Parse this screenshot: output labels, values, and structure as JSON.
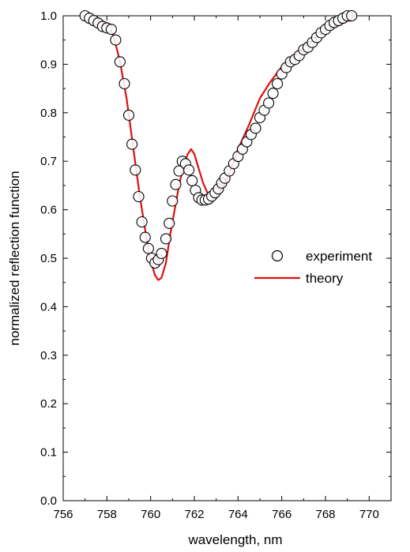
{
  "chart_data": {
    "type": "line",
    "title": "",
    "xlabel": "wavelength, nm",
    "ylabel": "normalized reflection function",
    "xlim": [
      756,
      771
    ],
    "ylim": [
      0.0,
      1.0
    ],
    "xticks": [
      "756",
      "758",
      "760",
      "762",
      "764",
      "766",
      "768",
      "770"
    ],
    "yticks": [
      "0.0",
      "0.1",
      "0.2",
      "0.3",
      "0.4",
      "0.5",
      "0.6",
      "0.7",
      "0.8",
      "0.9",
      "1.0"
    ],
    "grid": false,
    "legend_position": "right-middle",
    "series": [
      {
        "name": "experiment",
        "style": "scatter-open-circle",
        "color": "#000000",
        "x": [
          757.0,
          757.2,
          757.4,
          757.6,
          757.8,
          758.0,
          758.2,
          758.4,
          758.6,
          758.8,
          759.0,
          759.15,
          759.3,
          759.45,
          759.6,
          759.75,
          759.9,
          760.05,
          760.2,
          760.35,
          760.5,
          760.7,
          760.85,
          761.0,
          761.15,
          761.3,
          761.45,
          761.6,
          761.75,
          761.9,
          762.05,
          762.2,
          762.35,
          762.5,
          762.65,
          762.8,
          762.95,
          763.1,
          763.25,
          763.4,
          763.6,
          763.8,
          764.0,
          764.2,
          764.4,
          764.6,
          764.8,
          765.0,
          765.2,
          765.4,
          765.6,
          765.8,
          766.0,
          766.2,
          766.4,
          766.6,
          766.8,
          767.0,
          767.2,
          767.4,
          767.6,
          767.8,
          768.0,
          768.2,
          768.4,
          768.6,
          768.8,
          769.0,
          769.2
        ],
        "y": [
          1.0,
          0.995,
          0.99,
          0.985,
          0.978,
          0.975,
          0.972,
          0.95,
          0.905,
          0.86,
          0.795,
          0.735,
          0.682,
          0.627,
          0.575,
          0.543,
          0.52,
          0.5,
          0.49,
          0.497,
          0.51,
          0.54,
          0.572,
          0.618,
          0.652,
          0.68,
          0.7,
          0.695,
          0.682,
          0.66,
          0.64,
          0.625,
          0.62,
          0.62,
          0.622,
          0.628,
          0.635,
          0.643,
          0.655,
          0.665,
          0.68,
          0.695,
          0.71,
          0.725,
          0.74,
          0.755,
          0.768,
          0.79,
          0.805,
          0.82,
          0.84,
          0.86,
          0.88,
          0.893,
          0.905,
          0.91,
          0.918,
          0.93,
          0.935,
          0.945,
          0.955,
          0.965,
          0.972,
          0.98,
          0.986,
          0.99,
          0.995,
          1.0,
          1.0
        ]
      },
      {
        "name": "theory",
        "style": "line",
        "color": "#dd1111",
        "x": [
          757.0,
          757.5,
          758.0,
          758.3,
          758.6,
          758.9,
          759.2,
          759.5,
          759.8,
          760.0,
          760.2,
          760.35,
          760.5,
          760.7,
          760.9,
          761.1,
          761.3,
          761.5,
          761.7,
          761.85,
          762.0,
          762.2,
          762.4,
          762.6,
          762.8,
          763.0,
          763.3,
          763.6,
          764.0,
          764.5,
          765.0,
          765.5,
          766.0,
          766.5,
          767.0,
          767.5,
          768.0,
          768.5,
          769.0,
          769.2
        ],
        "y": [
          1.0,
          0.995,
          0.985,
          0.96,
          0.905,
          0.83,
          0.73,
          0.63,
          0.545,
          0.495,
          0.465,
          0.455,
          0.46,
          0.49,
          0.55,
          0.6,
          0.65,
          0.69,
          0.715,
          0.725,
          0.715,
          0.685,
          0.655,
          0.635,
          0.625,
          0.628,
          0.645,
          0.675,
          0.725,
          0.775,
          0.83,
          0.865,
          0.895,
          0.915,
          0.935,
          0.953,
          0.968,
          0.98,
          0.99,
          0.99
        ]
      }
    ]
  }
}
